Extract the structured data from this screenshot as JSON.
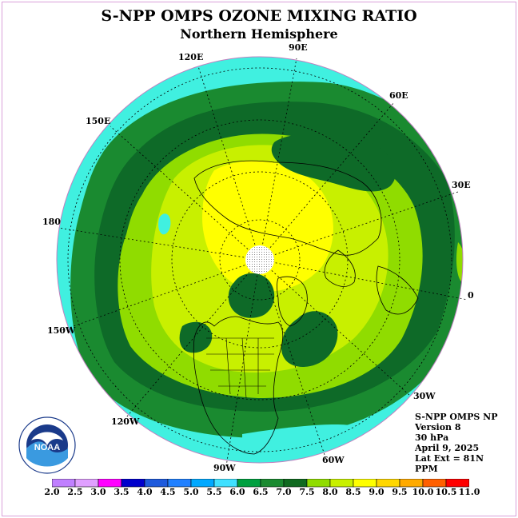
{
  "header": {
    "title": "S-NPP OMPS OZONE MIXING RATIO",
    "subtitle": "Northern Hemisphere"
  },
  "longitude_labels": {
    "lon_90e": "90E",
    "lon_120e": "120E",
    "lon_60e": "60E",
    "lon_150e": "150E",
    "lon_30e": "30E",
    "lon_180": "180",
    "lon_0": "0",
    "lon_150w": "150W",
    "lon_30w": "30W",
    "lon_120w": "120W",
    "lon_60w": "60W",
    "lon_90w": "90W"
  },
  "info": {
    "product": "S-NPP OMPS NP",
    "version": "Version 8",
    "level": "30 hPa",
    "date": "April 9, 2025",
    "lat_ext": "Lat Ext = 81N",
    "units": "PPM"
  },
  "logo": {
    "text": "NOAA",
    "ring_text": "NATIONAL OCEANIC AND ATMOSPHERIC ADMINISTRATION · U.S. DEPARTMENT OF COMMERCE"
  },
  "colorbar": {
    "labels": [
      "2.0",
      "2.5",
      "3.0",
      "3.5",
      "4.0",
      "4.5",
      "5.0",
      "5.5",
      "6.0",
      "6.5",
      "7.0",
      "7.5",
      "8.0",
      "8.5",
      "9.0",
      "9.5",
      "10.0",
      "10.5",
      "11.0"
    ],
    "colors": [
      "#c080ff",
      "#e0a0ff",
      "#ff00ff",
      "#0000cc",
      "#1e5adc",
      "#2080ff",
      "#00a8ff",
      "#40e0ff",
      "#00a040",
      "#1a8a30",
      "#106a20",
      "#90dc00",
      "#c8f000",
      "#ffff00",
      "#ffd700",
      "#ffaa00",
      "#ff6000",
      "#ff0000",
      "#a0522d"
    ]
  },
  "map": {
    "ocean_band_color": "#40f0e0",
    "dark_green": "#0e6a28",
    "mid_green": "#1a8a30",
    "light_green": "#90dc00",
    "yellow_green": "#c8f000",
    "yellow": "#ffff00",
    "pole_fill": "#ffffff"
  }
}
